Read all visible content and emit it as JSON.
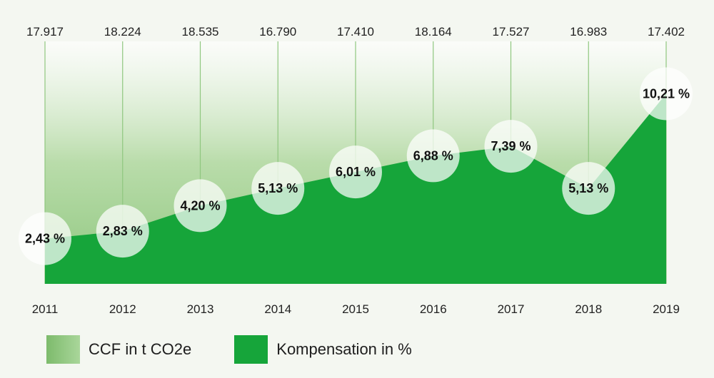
{
  "chart_data": {
    "type": "area",
    "x": [
      "2011",
      "2012",
      "2013",
      "2014",
      "2015",
      "2016",
      "2017",
      "2018",
      "2019"
    ],
    "ccf_labels": [
      "17.917",
      "18.224",
      "18.535",
      "16.790",
      "17.410",
      "18.164",
      "17.527",
      "16.983",
      "17.402"
    ],
    "series": [
      {
        "name": "CCF in t CO2e",
        "values": [
          17917,
          18224,
          18535,
          16790,
          17410,
          18164,
          17527,
          16983,
          17402
        ],
        "color": "#9ccf8c"
      },
      {
        "name": "Kompensation in %",
        "values": [
          2.43,
          2.83,
          4.2,
          5.13,
          6.01,
          6.88,
          7.39,
          5.13,
          10.21
        ],
        "labels": [
          "2,43 %",
          "2,83 %",
          "4,20 %",
          "5,13 %",
          "6,01 %",
          "6,88 %",
          "7,39 %",
          "5,13 %",
          "10,21 %"
        ],
        "color": "#16a53a"
      }
    ],
    "legend_position": "bottom-left"
  },
  "legend": [
    {
      "label": "CCF in t CO2e",
      "color": "#9ccf8c"
    },
    {
      "label": "Kompensation in %",
      "color": "#16a53a"
    }
  ]
}
